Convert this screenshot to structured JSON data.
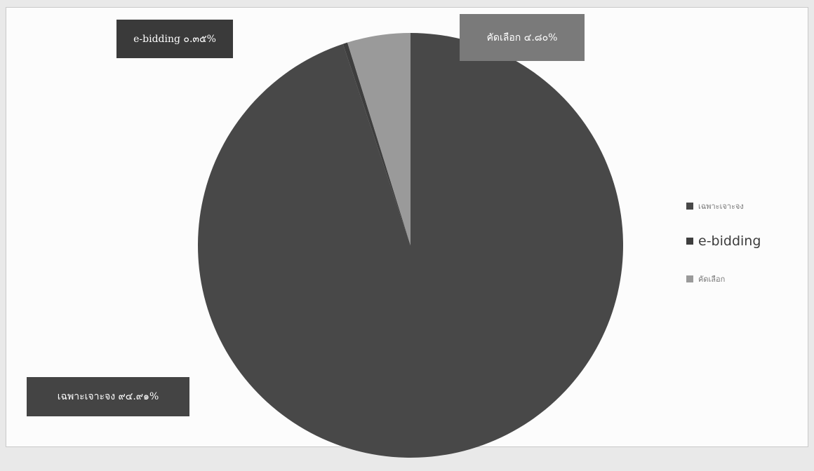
{
  "chart_data": {
    "type": "pie",
    "categories": [
      "เฉพาะเจาะจง",
      "e-bidding",
      "คัดเลือก"
    ],
    "values": [
      94.91,
      0.35,
      4.8
    ],
    "data_labels": [
      "เฉพาะเจาะจง ๙๔.๙๑%",
      "e-bidding ๐.๓๕%",
      "คัดเลือก ๔.๘๐%"
    ],
    "colors": [
      "#484848",
      "#3e3e3e",
      "#9a9a9a"
    ],
    "legend": "right",
    "start": "top"
  }
}
